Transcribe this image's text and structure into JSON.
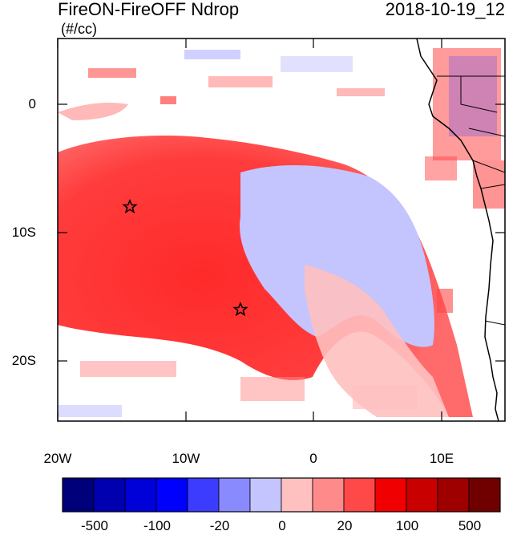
{
  "title": {
    "left": "FireON-FireOFF Ndrop",
    "right": "2018-10-19_12",
    "units": "(#/cc)"
  },
  "y_axis": {
    "labels": [
      "0",
      "10S",
      "20S"
    ]
  },
  "x_axis": {
    "labels": [
      "20W",
      "10W",
      "0",
      "10E"
    ]
  },
  "colorbar": {
    "colors": [
      "#00007a",
      "#0000b0",
      "#0000d8",
      "#0000ff",
      "#3c3cff",
      "#8a8aff",
      "#c4c4ff",
      "#ffc0c0",
      "#ff8a8a",
      "#ff4848",
      "#f00000",
      "#c80000",
      "#9e0000",
      "#700000"
    ],
    "labels": [
      "-500",
      "-100",
      "-20",
      "0",
      "20",
      "100",
      "500"
    ]
  },
  "markers": {
    "stars": [
      "star",
      "star"
    ]
  }
}
